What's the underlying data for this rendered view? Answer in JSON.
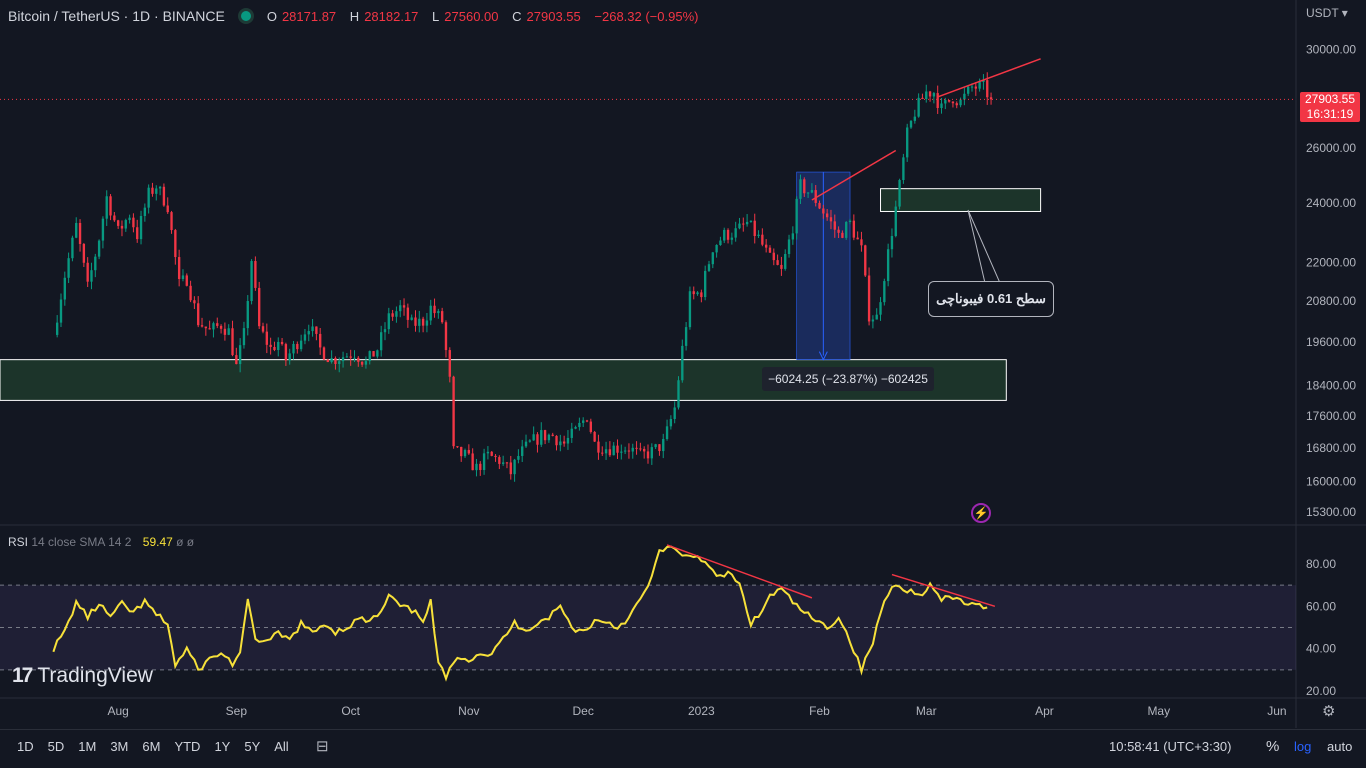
{
  "header": {
    "symbol_title": "Bitcoin / TetherUS · 1D · BINANCE",
    "ohlc": [
      {
        "label": "O",
        "value": "28171.87"
      },
      {
        "label": "H",
        "value": "28182.17"
      },
      {
        "label": "L",
        "value": "27560.00"
      },
      {
        "label": "C",
        "value": "27903.55"
      }
    ],
    "change": "−268.32 (−0.95%)"
  },
  "price_axis": {
    "currency": "USDT",
    "current_price": "27903.55",
    "countdown": "16:31:19"
  },
  "annotations": {
    "fib_callout": "سطح 0.61  فیبوناچی",
    "measure_label": "−6024.25 (−23.87%) −602425"
  },
  "rsi_legend": {
    "name": "RSI",
    "params": "14 close SMA 14 2",
    "value": "59.47",
    "extra": "ø ø"
  },
  "brand": {
    "logo": "17",
    "name": "TradingView"
  },
  "bottom_bar": {
    "timeframes": [
      "1D",
      "5D",
      "1M",
      "3M",
      "6M",
      "YTD",
      "1Y",
      "5Y",
      "All"
    ],
    "clock": "10:58:41 (UTC+3:30)",
    "percent_label": "%",
    "log_label": "log",
    "auto_label": "auto"
  },
  "icons": {
    "status": "market-open-dot-icon",
    "calendar": "calendar-range-icon",
    "flash": "flash-alert-icon",
    "settings": "gear-icon"
  },
  "colors": {
    "up": "#089981",
    "down": "#f23645",
    "rsi_line": "#f7e13a",
    "trend_line": "#f23645",
    "zone_fill": "#1e3a2b",
    "measure_fill": "#1c2f66"
  },
  "chart_data": {
    "type": "candlestick",
    "y_scale": "log",
    "ylim": [
      15000,
      31000
    ],
    "y_ticks": [
      30000,
      26000,
      24000,
      22000,
      20800,
      19600,
      18400,
      17600,
      16800,
      16000,
      15300
    ],
    "y_tick_labels": [
      "30000.00",
      "26000.00",
      "24000.00",
      "22000.00",
      "20800.00",
      "19600.00",
      "18400.00",
      "17600.00",
      "16800.00",
      "16000.00",
      "15300.00"
    ],
    "x_labels": [
      "Aug",
      "Sep",
      "Oct",
      "Nov",
      "Dec",
      "2023",
      "Feb",
      "Mar",
      "Apr",
      "May",
      "Jun"
    ],
    "x_label_days": [
      17,
      48,
      78,
      109,
      139,
      170,
      201,
      229,
      260,
      290,
      321
    ],
    "start_date": "2022-07-15",
    "last_close": 27903.55,
    "series_path": [
      [
        0,
        19800
      ],
      [
        3,
        21600
      ],
      [
        6,
        23200
      ],
      [
        9,
        21200
      ],
      [
        12,
        22800
      ],
      [
        14,
        24200
      ],
      [
        17,
        23000
      ],
      [
        20,
        23600
      ],
      [
        22,
        22900
      ],
      [
        25,
        24300
      ],
      [
        27,
        24600
      ],
      [
        30,
        23900
      ],
      [
        33,
        21300
      ],
      [
        35,
        21500
      ],
      [
        38,
        20200
      ],
      [
        41,
        19900
      ],
      [
        44,
        20100
      ],
      [
        46,
        19900
      ],
      [
        48,
        18900
      ],
      [
        50,
        19800
      ],
      [
        52,
        22100
      ],
      [
        54,
        20000
      ],
      [
        57,
        19400
      ],
      [
        59,
        19600
      ],
      [
        61,
        19100
      ],
      [
        64,
        19600
      ],
      [
        67,
        20100
      ],
      [
        70,
        19400
      ],
      [
        73,
        19100
      ],
      [
        76,
        19200
      ],
      [
        79,
        19300
      ],
      [
        82,
        19000
      ],
      [
        85,
        19400
      ],
      [
        88,
        20300
      ],
      [
        91,
        20600
      ],
      [
        94,
        20100
      ],
      [
        97,
        20200
      ],
      [
        99,
        20600
      ],
      [
        102,
        20200
      ],
      [
        104,
        18500
      ],
      [
        105,
        16700
      ],
      [
        108,
        16600
      ],
      [
        111,
        16300
      ],
      [
        114,
        16600
      ],
      [
        117,
        16500
      ],
      [
        120,
        16200
      ],
      [
        122,
        16600
      ],
      [
        125,
        16900
      ],
      [
        128,
        17100
      ],
      [
        131,
        17100
      ],
      [
        134,
        16900
      ],
      [
        137,
        17200
      ],
      [
        140,
        17600
      ],
      [
        142,
        16900
      ],
      [
        145,
        16800
      ],
      [
        148,
        16800
      ],
      [
        151,
        16800
      ],
      [
        154,
        16600
      ],
      [
        157,
        16700
      ],
      [
        160,
        16900
      ],
      [
        163,
        17800
      ],
      [
        165,
        19400
      ],
      [
        167,
        20900
      ],
      [
        170,
        21100
      ],
      [
        173,
        22500
      ],
      [
        176,
        22900
      ],
      [
        179,
        23000
      ],
      [
        182,
        23300
      ],
      [
        185,
        22800
      ],
      [
        188,
        22100
      ],
      [
        191,
        21700
      ],
      [
        194,
        23200
      ],
      [
        196,
        24600
      ],
      [
        199,
        24300
      ],
      [
        201,
        23900
      ],
      [
        203,
        23500
      ],
      [
        206,
        22900
      ],
      [
        209,
        23300
      ],
      [
        212,
        22400
      ],
      [
        214,
        20400
      ],
      [
        216,
        20300
      ],
      [
        219,
        22300
      ],
      [
        222,
        24600
      ],
      [
        224,
        26500
      ],
      [
        226,
        27400
      ],
      [
        229,
        28200
      ],
      [
        231,
        28200
      ],
      [
        233,
        27500
      ],
      [
        236,
        28000
      ],
      [
        238,
        27800
      ],
      [
        241,
        28400
      ],
      [
        244,
        28400
      ],
      [
        246,
        27903.55
      ]
    ]
  },
  "rsi_data": {
    "type": "line",
    "ylim": [
      15,
      95
    ],
    "y_ticks": [
      80,
      60,
      40,
      20
    ],
    "y_tick_labels": [
      "80.00",
      "60.00",
      "40.00",
      "20.00"
    ],
    "band_upper": 70,
    "band_mid": 50,
    "band_lower": 30,
    "series": [
      [
        0,
        40
      ],
      [
        3,
        48
      ],
      [
        6,
        62
      ],
      [
        9,
        55
      ],
      [
        12,
        61
      ],
      [
        15,
        55
      ],
      [
        18,
        61
      ],
      [
        21,
        57
      ],
      [
        24,
        62
      ],
      [
        27,
        56
      ],
      [
        30,
        52
      ],
      [
        32,
        32
      ],
      [
        35,
        40
      ],
      [
        38,
        30
      ],
      [
        41,
        35
      ],
      [
        44,
        38
      ],
      [
        47,
        33
      ],
      [
        49,
        38
      ],
      [
        51,
        62
      ],
      [
        53,
        45
      ],
      [
        56,
        43
      ],
      [
        59,
        47
      ],
      [
        62,
        44
      ],
      [
        65,
        52
      ],
      [
        68,
        47
      ],
      [
        71,
        52
      ],
      [
        74,
        48
      ],
      [
        77,
        50
      ],
      [
        80,
        54
      ],
      [
        83,
        53
      ],
      [
        86,
        57
      ],
      [
        88,
        65
      ],
      [
        91,
        60
      ],
      [
        94,
        58
      ],
      [
        97,
        54
      ],
      [
        99,
        62
      ],
      [
        101,
        33
      ],
      [
        103,
        26
      ],
      [
        106,
        37
      ],
      [
        109,
        35
      ],
      [
        112,
        38
      ],
      [
        115,
        37
      ],
      [
        118,
        45
      ],
      [
        121,
        52
      ],
      [
        124,
        49
      ],
      [
        127,
        52
      ],
      [
        130,
        55
      ],
      [
        133,
        60
      ],
      [
        136,
        50
      ],
      [
        139,
        48
      ],
      [
        142,
        53
      ],
      [
        145,
        53
      ],
      [
        148,
        50
      ],
      [
        151,
        55
      ],
      [
        154,
        63
      ],
      [
        157,
        73
      ],
      [
        159,
        87
      ],
      [
        162,
        88
      ],
      [
        165,
        83
      ],
      [
        168,
        84
      ],
      [
        171,
        82
      ],
      [
        174,
        73
      ],
      [
        177,
        76
      ],
      [
        180,
        70
      ],
      [
        183,
        52
      ],
      [
        185,
        55
      ],
      [
        188,
        65
      ],
      [
        191,
        68
      ],
      [
        194,
        62
      ],
      [
        197,
        57
      ],
      [
        200,
        53
      ],
      [
        203,
        50
      ],
      [
        206,
        55
      ],
      [
        209,
        44
      ],
      [
        212,
        30
      ],
      [
        215,
        43
      ],
      [
        218,
        63
      ],
      [
        221,
        71
      ],
      [
        224,
        68
      ],
      [
        227,
        65
      ],
      [
        230,
        70
      ],
      [
        233,
        63
      ],
      [
        236,
        64
      ],
      [
        239,
        62
      ],
      [
        242,
        60
      ],
      [
        245,
        59.47
      ]
    ]
  }
}
